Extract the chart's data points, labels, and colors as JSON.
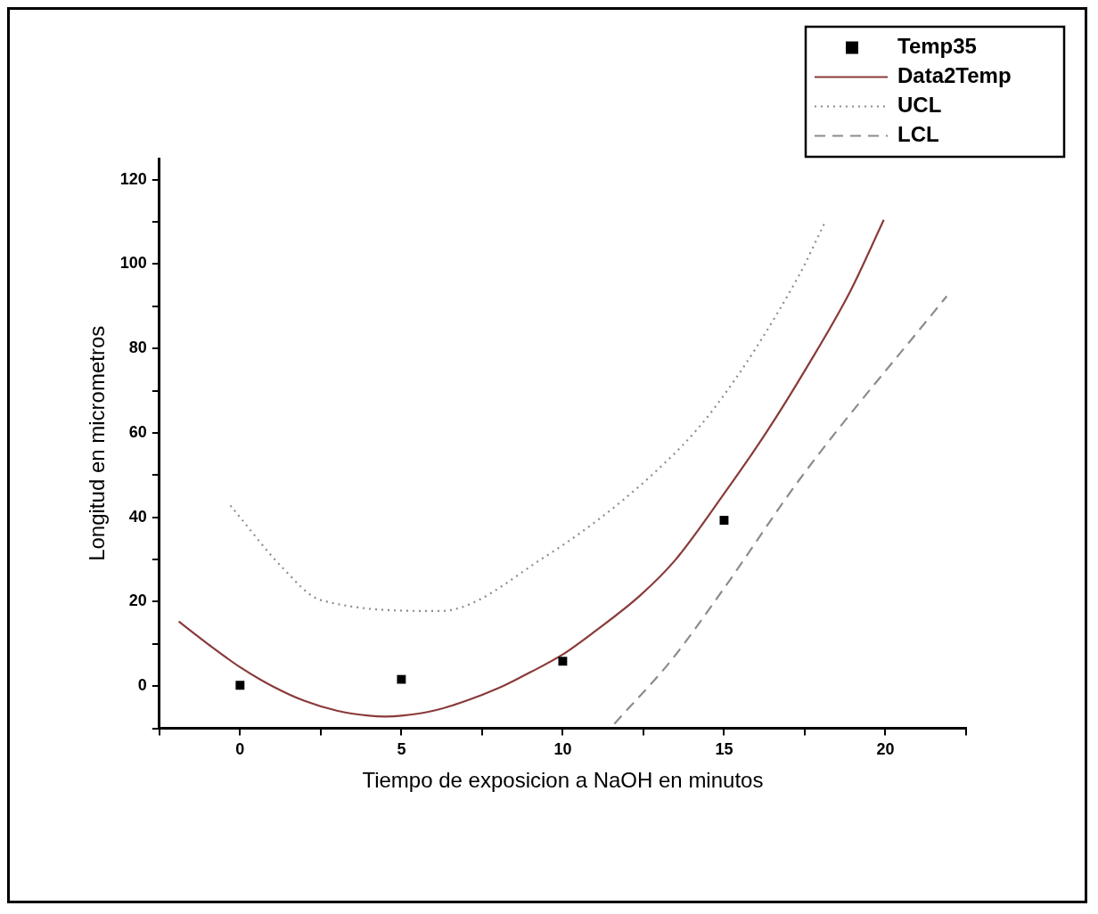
{
  "chart_data": {
    "type": "scatter",
    "xlabel": "Tiempo de exposicion a NaOH en minutos",
    "ylabel": "Longitud en micrometros",
    "xlim": [
      -2.5,
      22.5
    ],
    "xticks": [
      {
        "value": -2.5,
        "label": null
      },
      0,
      {
        "value": 2.5,
        "label": null
      },
      5,
      {
        "value": 7.5,
        "label": null
      },
      10,
      {
        "value": 12.5,
        "label": null
      },
      15,
      {
        "value": 17.5,
        "label": null
      },
      20,
      {
        "value": 22.5,
        "label": null
      }
    ],
    "ylim": [
      -10,
      125
    ],
    "yticks": [
      {
        "value": -10,
        "label": null
      },
      0,
      {
        "value": 10,
        "label": null
      },
      20,
      {
        "value": 30,
        "label": null
      },
      40,
      {
        "value": 50,
        "label": null
      },
      60,
      {
        "value": 70,
        "label": null
      },
      80,
      {
        "value": 90,
        "label": null
      },
      100,
      {
        "value": 110,
        "label": null
      },
      120
    ],
    "grid": false,
    "legend": "top right",
    "series": [
      {
        "name": "Temp35",
        "type": "scatter",
        "marker": "square",
        "color": "#000000",
        "x": [
          0,
          5,
          10,
          15
        ],
        "values": [
          0.2,
          1.6,
          5.9,
          39.3
        ]
      },
      {
        "name": "Data2Temp",
        "type": "line",
        "line_style": "solid",
        "color": "#8a3a3a",
        "x": [
          -1.9,
          -1,
          0,
          1,
          2,
          3,
          4,
          4.5,
          5,
          6,
          7,
          8,
          9,
          10,
          11,
          12.4,
          13.5,
          15,
          16.3,
          17.6,
          18.9,
          19.95
        ],
        "values": [
          15.3,
          10,
          4.5,
          0,
          -3.5,
          -5.8,
          -7,
          -7.2,
          -7,
          -5.8,
          -3.5,
          -0.5,
          3.3,
          7.5,
          13,
          21.5,
          30,
          45.6,
          60,
          76,
          93.4,
          110.5
        ]
      },
      {
        "name": "UCL",
        "type": "line",
        "line_style": "dotted",
        "color": "#8c8c8c",
        "x": [
          -0.3,
          1.3,
          2.5,
          6.2,
          9.4,
          12.7,
          14.65,
          17.3,
          18.1
        ],
        "values": [
          42.8,
          28.2,
          20.4,
          17.8,
          30.4,
          49.6,
          65.4,
          97,
          109.5
        ]
      },
      {
        "name": "LCL",
        "type": "line",
        "line_style": "dashed",
        "color": "#8c8c8c",
        "x": [
          11.6,
          13.35,
          15,
          17.4,
          21.9
        ],
        "values": [
          -8.9,
          6,
          23.2,
          49.6,
          92.4
        ]
      }
    ]
  }
}
